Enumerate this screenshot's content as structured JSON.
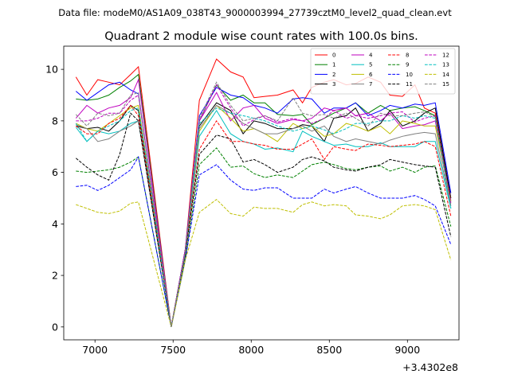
{
  "figure": {
    "suptitle": "Data file: modeM0/AS1A09_038T43_9000003994_27739cztM0_level2_quad_clean.evt"
  },
  "chart_data": {
    "type": "line",
    "title": "Quadrant 2 module wise count rates with 100.0s bins.",
    "xlabel": "",
    "ylabel": "",
    "x_offset_label": "+3.4302e8",
    "xlim": [
      6800,
      9330
    ],
    "ylim": [
      -0.5,
      10.9
    ],
    "x_ticks": [
      7000,
      7500,
      8000,
      8500,
      9000
    ],
    "x_tick_labels": [
      "7000",
      "7500",
      "8000",
      "8500",
      "9000"
    ],
    "y_ticks": [
      0,
      2,
      4,
      6,
      8,
      10
    ],
    "y_tick_labels": [
      "0",
      "2",
      "4",
      "6",
      "8",
      "10"
    ],
    "grid": false,
    "legend_position": "top-right",
    "legend_columns": 4,
    "x": [
      6878,
      6948,
      7018,
      7088,
      7158,
      7228,
      7278,
      7488,
      7578,
      7668,
      7778,
      7868,
      7948,
      8018,
      8088,
      8168,
      8268,
      8328,
      8388,
      8468,
      8528,
      8608,
      8668,
      8748,
      8828,
      8888,
      8968,
      9048,
      9108,
      9178,
      9278
    ],
    "series": [
      {
        "name": "0",
        "color": "#ff0000",
        "dash": "solid",
        "values": [
          9.7,
          9.0,
          9.6,
          9.5,
          9.4,
          9.8,
          10.1,
          0.0,
          3.0,
          8.8,
          10.4,
          9.9,
          9.7,
          8.9,
          8.95,
          9.0,
          9.2,
          8.7,
          9.3,
          9.5,
          9.6,
          9.4,
          9.45,
          9.7,
          9.5,
          9.0,
          8.95,
          9.4,
          8.5,
          8.3,
          5.0
        ]
      },
      {
        "name": "1",
        "color": "#008000",
        "dash": "solid",
        "values": [
          8.85,
          8.8,
          8.85,
          9.0,
          9.3,
          9.55,
          9.8,
          0.0,
          3.0,
          8.0,
          9.4,
          8.8,
          9.0,
          8.7,
          8.7,
          8.25,
          8.2,
          8.25,
          7.85,
          8.1,
          8.3,
          8.5,
          8.7,
          8.3,
          8.6,
          8.4,
          8.5,
          8.55,
          8.4,
          8.2,
          4.9
        ]
      },
      {
        "name": "2",
        "color": "#0000ff",
        "dash": "solid",
        "values": [
          9.15,
          8.8,
          9.1,
          9.4,
          9.5,
          9.2,
          9.05,
          0.0,
          3.0,
          8.2,
          9.3,
          9.0,
          8.9,
          8.6,
          8.5,
          8.3,
          8.85,
          8.9,
          8.85,
          8.3,
          8.5,
          8.5,
          8.7,
          8.2,
          8.4,
          8.6,
          8.5,
          8.65,
          8.6,
          8.7,
          5.2
        ]
      },
      {
        "name": "3",
        "color": "#000000",
        "dash": "solid",
        "values": [
          7.8,
          7.7,
          7.75,
          7.6,
          8.0,
          8.6,
          8.4,
          0.0,
          3.0,
          7.8,
          8.7,
          8.4,
          7.5,
          8.0,
          7.9,
          7.7,
          7.7,
          7.85,
          7.8,
          7.2,
          8.1,
          8.2,
          8.5,
          7.6,
          7.9,
          8.4,
          7.8,
          8.0,
          8.3,
          8.5,
          5.0
        ]
      },
      {
        "name": "4",
        "color": "#bf00bf",
        "dash": "solid",
        "values": [
          8.1,
          8.6,
          8.3,
          8.5,
          8.6,
          8.9,
          9.6,
          0.0,
          3.0,
          8.0,
          9.1,
          8.0,
          8.5,
          8.6,
          8.1,
          7.9,
          8.05,
          8.0,
          8.1,
          8.5,
          8.4,
          8.5,
          8.2,
          8.3,
          8.0,
          8.3,
          7.7,
          7.8,
          7.85,
          8.0,
          4.8
        ]
      },
      {
        "name": "5",
        "color": "#00bfbf",
        "dash": "solid",
        "values": [
          7.75,
          7.2,
          7.6,
          7.5,
          7.6,
          7.9,
          8.0,
          0.0,
          2.8,
          7.4,
          8.4,
          7.5,
          7.2,
          7.1,
          6.9,
          6.95,
          6.8,
          7.6,
          7.4,
          7.2,
          7.05,
          7.1,
          7.0,
          7.0,
          7.15,
          7.0,
          7.0,
          7.0,
          7.2,
          7.2,
          4.6
        ]
      },
      {
        "name": "6",
        "color": "#bfbf00",
        "dash": "solid",
        "values": [
          7.9,
          7.7,
          7.6,
          7.9,
          8.2,
          8.5,
          8.6,
          0.0,
          2.9,
          7.6,
          8.6,
          8.1,
          7.6,
          7.7,
          7.5,
          7.2,
          7.9,
          7.7,
          7.8,
          7.4,
          7.5,
          7.9,
          7.8,
          7.6,
          7.8,
          7.5,
          8.0,
          7.9,
          7.8,
          7.8,
          4.9
        ]
      },
      {
        "name": "7",
        "color": "#808080",
        "dash": "solid",
        "values": [
          7.85,
          7.7,
          7.2,
          7.3,
          7.6,
          7.8,
          8.0,
          0.0,
          2.9,
          7.7,
          8.6,
          8.3,
          7.9,
          7.7,
          7.5,
          7.5,
          7.7,
          7.8,
          7.6,
          7.8,
          7.4,
          7.2,
          7.3,
          7.2,
          7.1,
          7.25,
          7.4,
          7.5,
          7.55,
          7.5,
          4.7
        ]
      },
      {
        "name": "8",
        "color": "#ff0000",
        "dash": "dashed",
        "values": [
          7.8,
          7.5,
          7.5,
          7.9,
          8.1,
          8.6,
          8.2,
          0.0,
          2.9,
          6.9,
          8.0,
          7.2,
          7.2,
          7.1,
          7.05,
          6.9,
          6.9,
          7.1,
          7.3,
          6.5,
          7.0,
          6.9,
          6.85,
          7.1,
          7.05,
          7.0,
          7.05,
          7.1,
          7.2,
          7.0,
          4.3
        ]
      },
      {
        "name": "9",
        "color": "#008000",
        "dash": "dashed",
        "values": [
          6.05,
          6.0,
          6.05,
          6.1,
          6.2,
          6.4,
          6.6,
          0.0,
          2.6,
          6.3,
          6.95,
          6.2,
          6.25,
          5.95,
          5.8,
          5.9,
          5.8,
          6.05,
          6.3,
          6.4,
          6.3,
          6.15,
          6.1,
          6.2,
          6.25,
          6.05,
          6.2,
          6.0,
          6.2,
          6.25,
          3.9
        ]
      },
      {
        "name": "10",
        "color": "#0000ff",
        "dash": "dashed",
        "values": [
          5.45,
          5.5,
          5.3,
          5.5,
          5.8,
          6.1,
          6.6,
          0.0,
          2.6,
          5.9,
          6.3,
          5.7,
          5.35,
          5.3,
          5.4,
          5.4,
          5.0,
          5.0,
          5.0,
          5.35,
          5.2,
          5.35,
          5.45,
          5.2,
          5.0,
          5.0,
          5.0,
          5.1,
          4.95,
          4.7,
          3.2
        ]
      },
      {
        "name": "11",
        "color": "#000000",
        "dash": "dashed",
        "values": [
          6.55,
          6.2,
          5.9,
          5.7,
          6.7,
          8.3,
          8.0,
          0.0,
          2.8,
          6.7,
          7.45,
          7.3,
          6.4,
          6.5,
          6.3,
          6.0,
          6.2,
          6.5,
          6.6,
          6.45,
          6.2,
          6.1,
          6.05,
          6.2,
          6.3,
          6.5,
          6.4,
          6.3,
          6.25,
          6.2,
          3.5
        ]
      },
      {
        "name": "12",
        "color": "#bf00bf",
        "dash": "dashed",
        "values": [
          8.0,
          8.0,
          8.1,
          8.3,
          8.3,
          8.8,
          9.0,
          0.0,
          3.0,
          8.0,
          9.4,
          8.5,
          7.8,
          8.05,
          8.2,
          7.95,
          8.1,
          8.0,
          7.9,
          8.1,
          8.4,
          8.1,
          8.2,
          8.1,
          8.2,
          8.3,
          8.35,
          7.95,
          8.1,
          8.2,
          4.85
        ]
      },
      {
        "name": "13",
        "color": "#00bfbf",
        "dash": "dashed",
        "values": [
          7.9,
          7.2,
          7.6,
          7.8,
          8.0,
          8.4,
          8.5,
          0.0,
          2.9,
          7.9,
          8.5,
          8.3,
          8.2,
          8.1,
          8.0,
          7.8,
          7.6,
          7.7,
          7.8,
          7.65,
          7.5,
          7.7,
          7.9,
          7.9,
          8.0,
          8.0,
          8.2,
          8.1,
          8.2,
          8.1,
          4.6
        ]
      },
      {
        "name": "14",
        "color": "#bfbf00",
        "dash": "dashed",
        "values": [
          4.75,
          4.6,
          4.45,
          4.4,
          4.5,
          4.8,
          4.85,
          0.0,
          2.6,
          4.45,
          4.95,
          4.4,
          4.3,
          4.65,
          4.6,
          4.6,
          4.45,
          4.75,
          4.85,
          4.7,
          4.75,
          4.7,
          4.35,
          4.3,
          4.2,
          4.35,
          4.7,
          4.75,
          4.7,
          4.55,
          2.6
        ]
      },
      {
        "name": "15",
        "color": "#808080",
        "dash": "dashed",
        "values": [
          8.25,
          7.8,
          8.3,
          8.2,
          8.3,
          9.0,
          9.1,
          0.0,
          2.9,
          8.1,
          9.5,
          8.6,
          8.0,
          8.1,
          8.2,
          8.0,
          8.9,
          8.3,
          8.2,
          8.25,
          8.1,
          8.3,
          8.1,
          7.8,
          8.3,
          8.2,
          8.2,
          8.3,
          8.35,
          8.15,
          4.7
        ]
      }
    ]
  }
}
